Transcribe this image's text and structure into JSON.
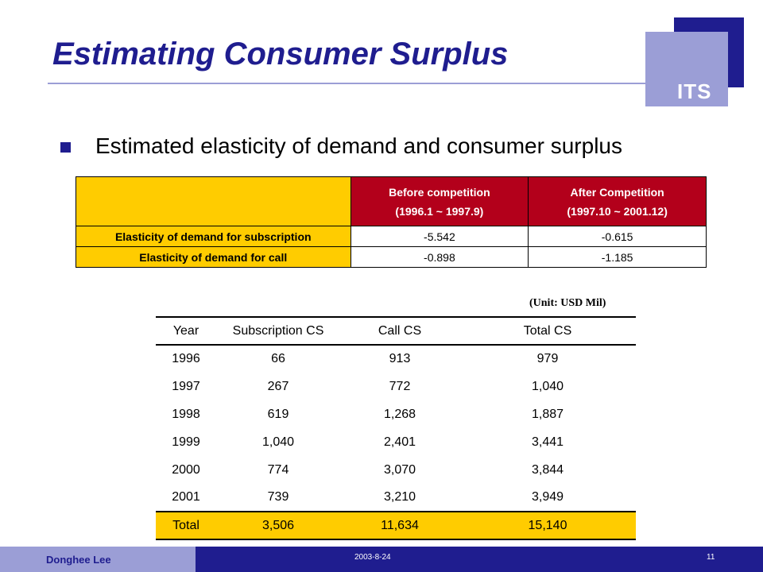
{
  "logo": {
    "text": "ITS"
  },
  "slide": {
    "title": "Estimating Consumer Surplus",
    "bullet": "Estimated elasticity of demand and consumer surplus"
  },
  "elasticity_table": {
    "headers": [
      {
        "line1": "Before competition",
        "line2": "(1996.1 ~ 1997.9)"
      },
      {
        "line1": "After Competition",
        "line2": "(1997.10 ~ 2001.12)"
      }
    ],
    "rows": [
      {
        "label": "Elasticity of demand for subscription",
        "before": "-5.542",
        "after": "-0.615"
      },
      {
        "label": "Elasticity of demand for call",
        "before": "-0.898",
        "after": "-1.185"
      }
    ]
  },
  "cs_table": {
    "unit": "(Unit: USD Mil)",
    "columns": [
      "Year",
      "Subscription CS",
      "Call CS",
      "Total CS"
    ],
    "rows": [
      [
        "1996",
        "66",
        "913",
        "979"
      ],
      [
        "1997",
        "267",
        "772",
        "1,040"
      ],
      [
        "1998",
        "619",
        "1,268",
        "1,887"
      ],
      [
        "1999",
        "1,040",
        "2,401",
        "3,441"
      ],
      [
        "2000",
        "774",
        "3,070",
        "3,844"
      ],
      [
        "2001",
        "739",
        "3,210",
        "3,949"
      ]
    ],
    "total": [
      "Total",
      "3,506",
      "11,634",
      "15,140"
    ]
  },
  "footer": {
    "author": "Donghee Lee",
    "date": "2003-8-24",
    "page": "11"
  },
  "colors": {
    "brand_dark": "#1f1d8f",
    "brand_light": "#9b9ed6",
    "header_red": "#b3001b",
    "highlight_yellow": "#ffcc00"
  }
}
